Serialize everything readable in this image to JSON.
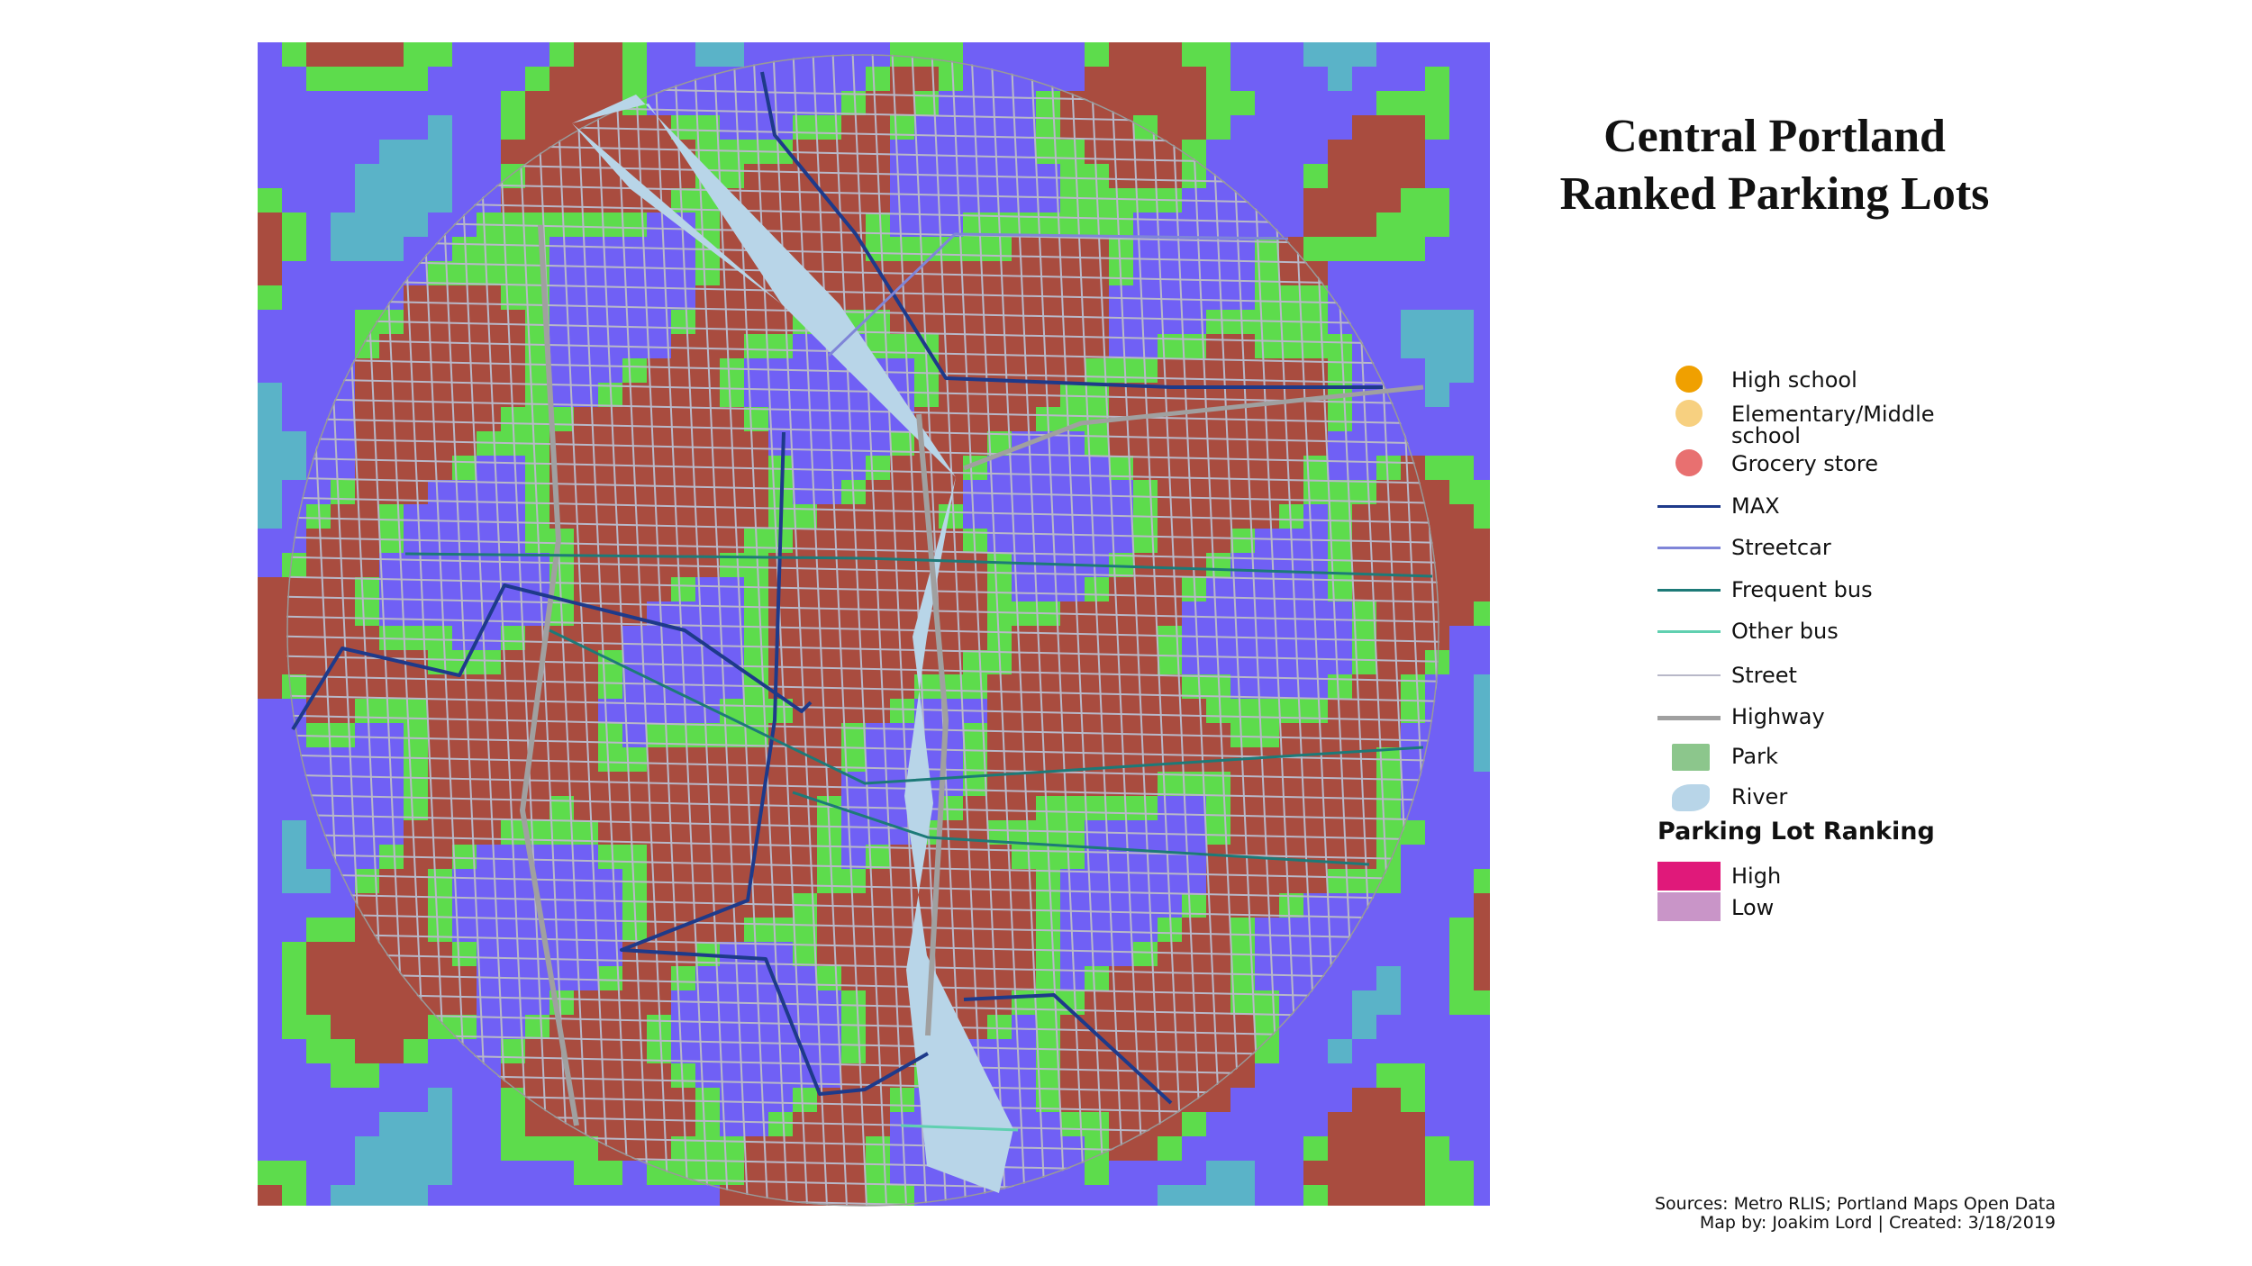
{
  "header": {
    "title_line1": "Central Portland",
    "title_line2": "Ranked Parking Lots"
  },
  "legend": {
    "items": [
      "High school",
      "Elementary/Middle school",
      "Grocery store",
      "MAX",
      "Streetcar",
      "Frequent bus",
      "Other bus",
      "Street",
      "Highway",
      "Park",
      "River"
    ],
    "ranking_title": "Parking Lot Ranking",
    "ranking": [
      "High",
      "Low"
    ]
  },
  "footer": {
    "sources": "Sources: Metro RLIS; Portland Maps Open Data",
    "credit": "Map by: Joakim Lord | Created: 3/18/2019"
  }
}
